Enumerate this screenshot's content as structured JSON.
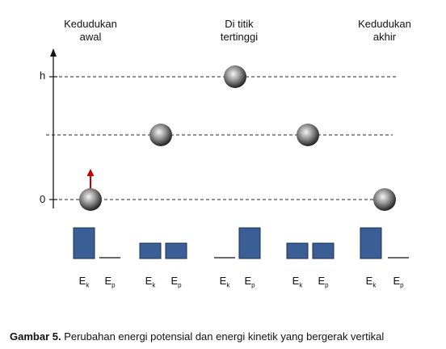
{
  "positions": [
    {
      "title_line1": "Kedudukan",
      "title_line2": "awal"
    },
    {
      "title_line1": "Di titik",
      "title_line2": "tertinggi"
    },
    {
      "title_line1": "Kedudukan",
      "title_line2": "akhir"
    }
  ],
  "axis": {
    "top_label": "h",
    "bottom_label": "0"
  },
  "energy_groups": [
    {
      "ek": 1.0,
      "ep": 0.0
    },
    {
      "ek": 0.5,
      "ep": 0.5
    },
    {
      "ek": 0.0,
      "ep": 1.0
    },
    {
      "ek": 0.5,
      "ep": 0.5
    },
    {
      "ek": 1.0,
      "ep": 0.0
    }
  ],
  "energy_labels": {
    "ek_main": "E",
    "ek_sub": "k",
    "ep_main": "E",
    "ep_sub": "p"
  },
  "caption": {
    "prefix": "Gambar 5.",
    "text": " Perubahan energi potensial dan energi kinetik yang bergerak vertikal"
  },
  "colors": {
    "bar": "#3a5f96",
    "bar_border": "#1e2f4d",
    "arrow": "#c00000",
    "dash": "#222222"
  }
}
